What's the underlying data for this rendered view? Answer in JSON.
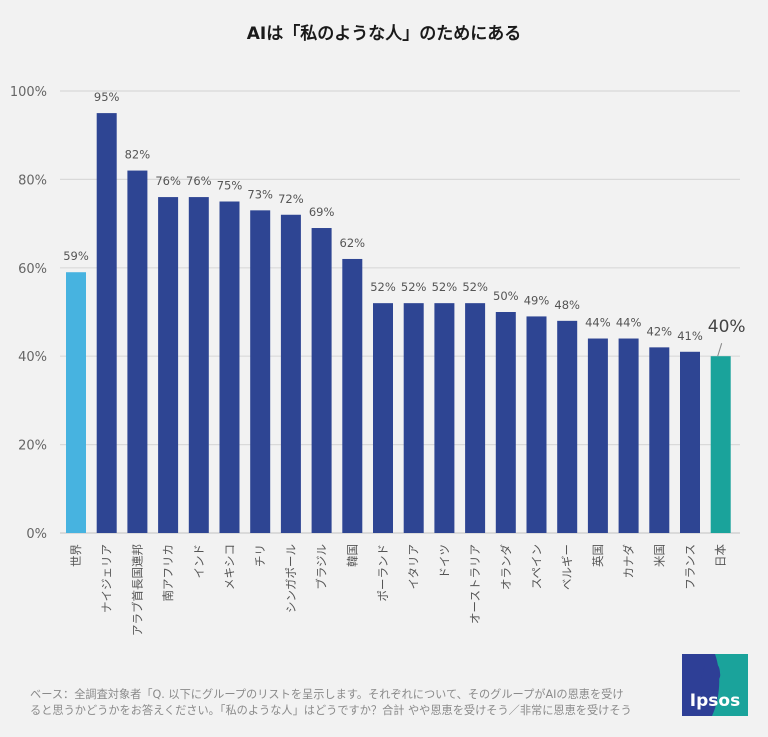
{
  "title": "AIは「私のような人」のためにある",
  "chart_data": {
    "type": "bar",
    "title": "AIは「私のような人」のためにある",
    "xlabel": "",
    "ylabel": "",
    "ylim": [
      0,
      100
    ],
    "yticks": [
      0,
      20,
      40,
      60,
      80,
      100
    ],
    "ytick_labels": [
      "0%",
      "20%",
      "40%",
      "60%",
      "80%",
      "100%"
    ],
    "grid": true,
    "categories": [
      "世界",
      "ナイジェリア",
      "アラブ首長国連邦",
      "南アフリカ",
      "インド",
      "メキシコ",
      "チリ",
      "シンガポール",
      "ブラジル",
      "韓国",
      "ポーランド",
      "イタリア",
      "ドイツ",
      "オーストラリア",
      "オランダ",
      "スペイン",
      "ベルギー",
      "英国",
      "カナダ",
      "米国",
      "フランス",
      "日本"
    ],
    "values": [
      59,
      95,
      82,
      76,
      76,
      75,
      73,
      72,
      69,
      62,
      52,
      52,
      52,
      52,
      50,
      49,
      48,
      44,
      44,
      42,
      41,
      40
    ],
    "value_labels": [
      "59%",
      "95%",
      "82%",
      "76%",
      "76%",
      "75%",
      "73%",
      "72%",
      "69%",
      "62%",
      "52%",
      "52%",
      "52%",
      "52%",
      "50%",
      "49%",
      "48%",
      "44%",
      "44%",
      "42%",
      "41%",
      "40%"
    ],
    "highlight": {
      "世界": "world",
      "日本": "japan"
    }
  },
  "colors": {
    "world": "#47b3e0",
    "country": "#2e4593",
    "japan": "#1aa39b",
    "grid": "#d9d9d9"
  },
  "footer": {
    "line1": "ベース：全調査対象者「Q. 以下にグループのリストを呈示します。それぞれについて、そのグループがAIの恩恵を受け",
    "line2": "ると思うかどうかをお答えください。「私のような人」はどうですか？合計 やや恩恵を受けそう／非常に恩恵を受けそう"
  },
  "logo": {
    "text": "Ipsos"
  }
}
